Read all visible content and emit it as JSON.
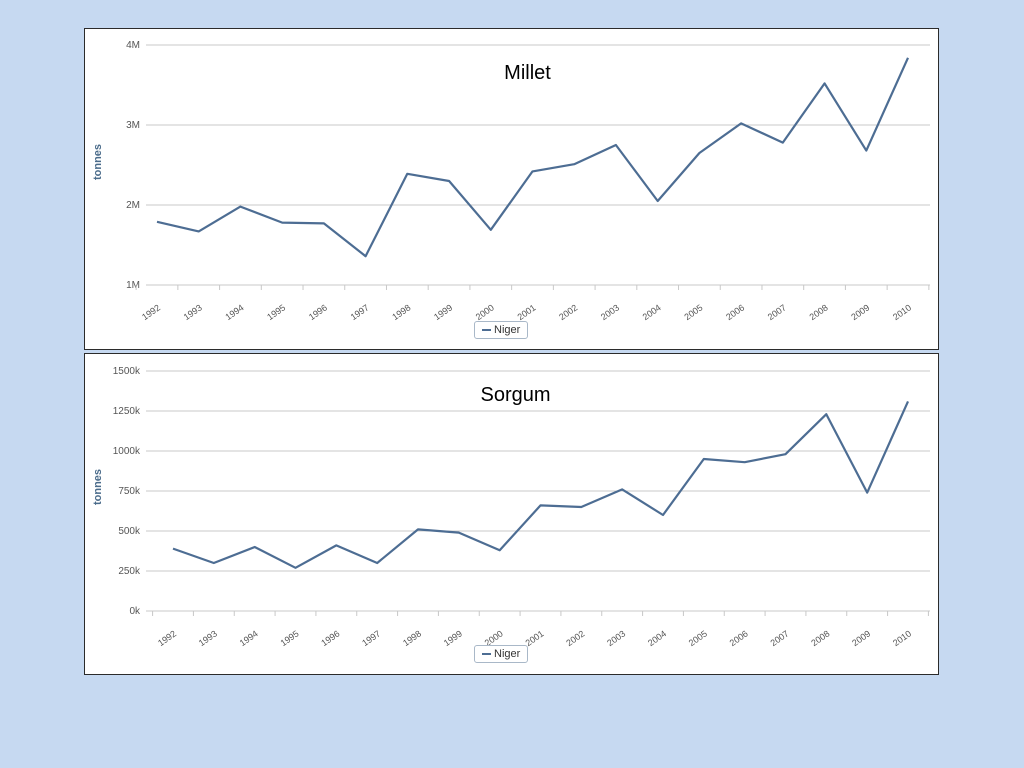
{
  "colors": {
    "background": "#c6d9f1",
    "line": "#4d6d93",
    "grid": "#c8c8c8"
  },
  "chart_data": [
    {
      "type": "line",
      "title": "Millet",
      "xlabel": "",
      "ylabel": "tonnes",
      "x": [
        "1992",
        "1993",
        "1994",
        "1995",
        "1996",
        "1997",
        "1998",
        "1999",
        "2000",
        "2001",
        "2002",
        "2003",
        "2004",
        "2005",
        "2006",
        "2007",
        "2008",
        "2009",
        "2010"
      ],
      "series": [
        {
          "name": "Niger",
          "values": [
            1790000,
            1670000,
            1980000,
            1780000,
            1770000,
            1360000,
            2390000,
            2300000,
            1690000,
            2420000,
            2510000,
            2750000,
            2050000,
            2650000,
            3020000,
            2780000,
            3520000,
            2680000,
            3840000
          ]
        }
      ],
      "ylim": [
        1000000,
        4000000
      ],
      "yticks": [
        1000000,
        2000000,
        3000000,
        4000000
      ],
      "ytick_labels": [
        "1M",
        "2M",
        "3M",
        "4M"
      ],
      "grid": true,
      "legend": "bottom-center"
    },
    {
      "type": "line",
      "title": "Sorgum",
      "xlabel": "",
      "ylabel": "tonnes",
      "x": [
        "1992",
        "1993",
        "1994",
        "1995",
        "1996",
        "1997",
        "1998",
        "1999",
        "2000",
        "2001",
        "2002",
        "2003",
        "2004",
        "2005",
        "2006",
        "2007",
        "2008",
        "2009",
        "2010"
      ],
      "series": [
        {
          "name": "Niger",
          "values": [
            390000,
            300000,
            400000,
            270000,
            410000,
            300000,
            510000,
            490000,
            380000,
            660000,
            650000,
            760000,
            600000,
            950000,
            930000,
            980000,
            1230000,
            740000,
            1310000
          ]
        }
      ],
      "ylim": [
        0,
        1500000
      ],
      "yticks": [
        0,
        250000,
        500000,
        750000,
        1000000,
        1250000,
        1500000
      ],
      "ytick_labels": [
        "0k",
        "250k",
        "500k",
        "750k",
        "1000k",
        "1250k",
        "1500k"
      ],
      "grid": true,
      "legend": "bottom-center"
    }
  ]
}
